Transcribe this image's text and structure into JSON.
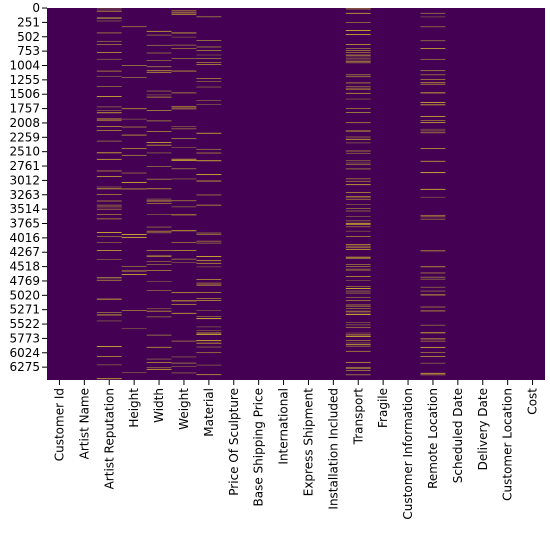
{
  "chart_data": {
    "type": "heatmap",
    "title": "",
    "xlabel": "",
    "ylabel": "",
    "x_tick_labels": [
      "Customer Id",
      "Artist Name",
      "Artist Reputation",
      "Height",
      "Width",
      "Weight",
      "Material",
      "Price Of Sculpture",
      "Base Shipping Price",
      "International",
      "Express Shipment",
      "Installation Included",
      "Transport",
      "Fragile",
      "Customer Information",
      "Remote Location",
      "Scheduled Date",
      "Delivery Date",
      "Customer Location",
      "Cost"
    ],
    "y_tick_labels": [
      "0",
      "251",
      "502",
      "753",
      "1004",
      "1255",
      "1506",
      "1757",
      "2008",
      "2259",
      "2510",
      "2761",
      "3012",
      "3263",
      "3514",
      "3765",
      "4016",
      "4267",
      "4518",
      "4769",
      "5020",
      "5271",
      "5522",
      "5773",
      "6024",
      "6275"
    ],
    "row_count": 6500,
    "value_meaning": "1 = missing value, 0 = present",
    "missing_fraction": [
      0,
      0,
      0.115,
      0.05,
      0.09,
      0.09,
      0.12,
      0,
      0,
      0,
      0,
      0,
      0.214,
      0,
      0,
      0.118,
      0,
      0,
      0,
      0
    ],
    "colors": {
      "present": "#440154",
      "missing": "#fde725",
      "mid": "#b5a23a"
    },
    "grid": false,
    "colorbar": false
  }
}
